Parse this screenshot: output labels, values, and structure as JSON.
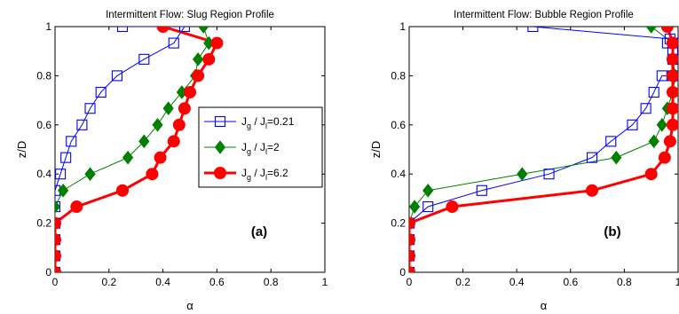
{
  "chart_data": [
    {
      "type": "line",
      "title": "Intermittent Flow: Slug Region Profile",
      "xlabel": "α",
      "ylabel": "z/D",
      "xlim": [
        0,
        1
      ],
      "ylim": [
        0,
        1
      ],
      "xticks": [
        "0",
        "0.2",
        "0.4",
        "0.6",
        "0.8",
        "1"
      ],
      "yticks": [
        "0",
        "0.2",
        "0.4",
        "0.6",
        "0.8",
        "1"
      ],
      "panel_label": "(a)",
      "grid": false,
      "legend_position": "right",
      "series": [
        {
          "name": "Jg / Jl=0.21",
          "color": "#0000ff",
          "marker": "open-square",
          "x": [
            0,
            0,
            0,
            0,
            0,
            0,
            0.02,
            0.04,
            0.06,
            0.1,
            0.13,
            0.17,
            0.23,
            0.33,
            0.44,
            0.48,
            0.25
          ],
          "y": [
            0,
            0.067,
            0.133,
            0.2,
            0.267,
            0.333,
            0.4,
            0.467,
            0.533,
            0.6,
            0.667,
            0.733,
            0.8,
            0.867,
            0.933,
            1.0,
            1.0
          ]
        },
        {
          "name": "Jg / Jl=2",
          "color": "#008000",
          "marker": "filled-diamond",
          "x": [
            0,
            0,
            0,
            0,
            0,
            0.03,
            0.13,
            0.27,
            0.33,
            0.38,
            0.42,
            0.47,
            0.52,
            0.53,
            0.57,
            0.55
          ],
          "y": [
            0,
            0.067,
            0.133,
            0.2,
            0.267,
            0.333,
            0.4,
            0.467,
            0.533,
            0.6,
            0.667,
            0.733,
            0.8,
            0.867,
            0.933,
            1.0
          ]
        },
        {
          "name": "Jg / Jl=6.2",
          "color": "#ff0000",
          "marker": "filled-circle",
          "x": [
            0,
            0,
            0,
            0,
            0.08,
            0.25,
            0.36,
            0.39,
            0.44,
            0.46,
            0.48,
            0.5,
            0.53,
            0.57,
            0.6,
            0.4
          ],
          "y": [
            0,
            0.067,
            0.133,
            0.2,
            0.267,
            0.333,
            0.4,
            0.467,
            0.533,
            0.6,
            0.667,
            0.733,
            0.8,
            0.867,
            0.933,
            1.0
          ]
        }
      ],
      "legend": {
        "entries": [
          {
            "base": "J",
            "sub1": "g",
            "mid": " / J",
            "sub2": "l",
            "tail": "=0.21"
          },
          {
            "base": "J",
            "sub1": "g",
            "mid": " / J",
            "sub2": "l",
            "tail": "=2"
          },
          {
            "base": "J",
            "sub1": "g",
            "mid": " / J",
            "sub2": "l",
            "tail": "=6.2"
          }
        ]
      }
    },
    {
      "type": "line",
      "title": "Intermittent Flow: Bubble Region Profile",
      "xlabel": "α",
      "ylabel": "z/D",
      "xlim": [
        0,
        1
      ],
      "ylim": [
        0,
        1
      ],
      "xticks": [
        "0",
        "0.2",
        "0.4",
        "0.6",
        "0.8",
        "1"
      ],
      "yticks": [
        "0",
        "0.2",
        "0.4",
        "0.6",
        "0.8",
        "1"
      ],
      "panel_label": "(b)",
      "grid": false,
      "series": [
        {
          "name": "Jg / Jl=0.21",
          "color": "#0000ff",
          "marker": "open-square",
          "x": [
            0,
            0,
            0,
            0,
            0.07,
            0.27,
            0.52,
            0.68,
            0.75,
            0.83,
            0.88,
            0.91,
            0.94,
            0.98,
            0.98,
            0.99,
            0.98,
            0.98,
            0.96,
            0.97,
            0.46
          ],
          "y": [
            0,
            0.067,
            0.133,
            0.2,
            0.267,
            0.333,
            0.4,
            0.467,
            0.533,
            0.6,
            0.667,
            0.733,
            0.8,
            0.8,
            0.867,
            0.867,
            0.9,
            0.933,
            0.933,
            0.95,
            1.0
          ]
        },
        {
          "name": "Jg / Jl=2",
          "color": "#008000",
          "marker": "filled-diamond",
          "x": [
            0,
            0,
            0,
            0,
            0.02,
            0.07,
            0.42,
            0.77,
            0.91,
            0.94,
            0.96,
            0.98,
            0.99,
            0.98,
            0.98,
            0.9
          ],
          "y": [
            0,
            0.067,
            0.133,
            0.2,
            0.267,
            0.333,
            0.4,
            0.467,
            0.533,
            0.6,
            0.667,
            0.733,
            0.8,
            0.867,
            0.933,
            1.0
          ]
        },
        {
          "name": "Jg / Jl=6.2",
          "color": "#ff0000",
          "marker": "filled-circle",
          "x": [
            0,
            0,
            0,
            0,
            0.16,
            0.68,
            0.9,
            0.95,
            0.97,
            0.98,
            0.98,
            0.98,
            0.98,
            0.98,
            0.98,
            0.96
          ],
          "y": [
            0,
            0.067,
            0.133,
            0.2,
            0.267,
            0.333,
            0.4,
            0.467,
            0.533,
            0.6,
            0.667,
            0.733,
            0.8,
            0.867,
            0.933,
            1.0
          ]
        }
      ]
    }
  ]
}
